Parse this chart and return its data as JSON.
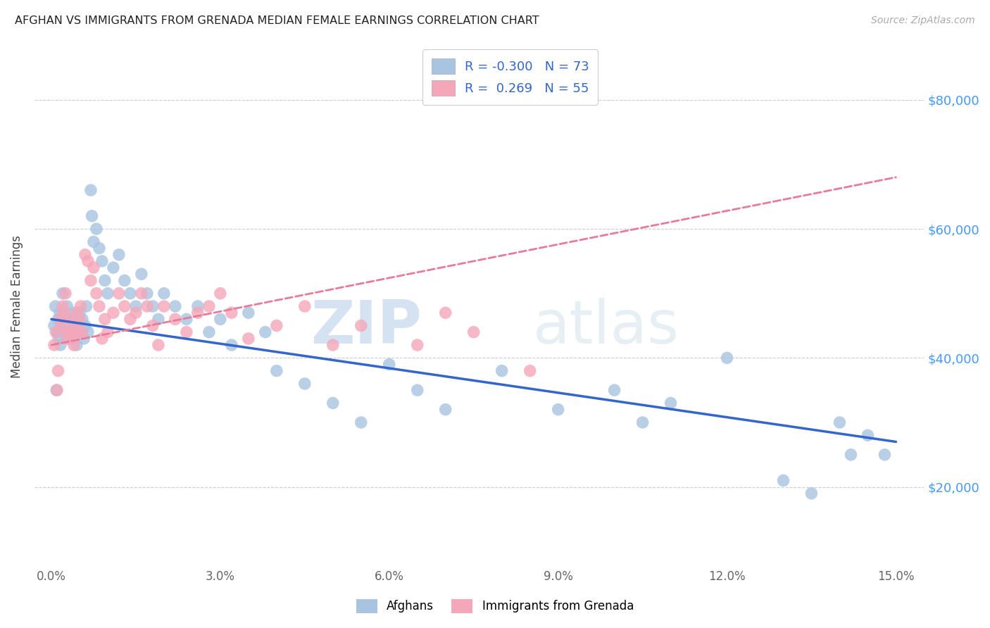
{
  "title": "AFGHAN VS IMMIGRANTS FROM GRENADA MEDIAN FEMALE EARNINGS CORRELATION CHART",
  "source": "Source: ZipAtlas.com",
  "ylabel": "Median Female Earnings",
  "xlabel_ticks": [
    "0.0%",
    "3.0%",
    "6.0%",
    "9.0%",
    "12.0%",
    "15.0%"
  ],
  "xlabel_vals": [
    0.0,
    3.0,
    6.0,
    9.0,
    12.0,
    15.0
  ],
  "ytick_labels": [
    "$20,000",
    "$40,000",
    "$60,000",
    "$80,000"
  ],
  "ytick_vals": [
    20000,
    40000,
    60000,
    80000
  ],
  "xlim": [
    -0.3,
    15.5
  ],
  "ylim": [
    8000,
    88000
  ],
  "afghan_color": "#a8c4e0",
  "grenada_color": "#f4a7b9",
  "afghan_line_color": "#3366cc",
  "grenada_line_color": "#e87a9a",
  "R_afghan": -0.3,
  "N_afghan": 73,
  "R_grenada": 0.269,
  "N_grenada": 55,
  "legend_label_1": "Afghans",
  "legend_label_2": "Immigrants from Grenada",
  "watermark_zip": "ZIP",
  "watermark_atlas": "atlas",
  "afghan_line_x0": 0.0,
  "afghan_line_y0": 46000,
  "afghan_line_x1": 15.0,
  "afghan_line_y1": 27000,
  "grenada_line_x0": 0.0,
  "grenada_line_y0": 42000,
  "grenada_line_x1": 15.0,
  "grenada_line_y1": 68000,
  "afghan_x": [
    0.05,
    0.07,
    0.09,
    0.1,
    0.12,
    0.13,
    0.15,
    0.16,
    0.18,
    0.2,
    0.22,
    0.25,
    0.28,
    0.3,
    0.32,
    0.35,
    0.38,
    0.4,
    0.42,
    0.45,
    0.48,
    0.5,
    0.52,
    0.55,
    0.58,
    0.6,
    0.62,
    0.65,
    0.7,
    0.72,
    0.75,
    0.8,
    0.85,
    0.9,
    0.95,
    1.0,
    1.1,
    1.2,
    1.3,
    1.4,
    1.5,
    1.6,
    1.7,
    1.8,
    1.9,
    2.0,
    2.2,
    2.4,
    2.6,
    2.8,
    3.0,
    3.2,
    3.5,
    3.8,
    4.0,
    4.5,
    5.0,
    5.5,
    6.0,
    6.5,
    7.0,
    8.0,
    9.0,
    10.0,
    10.5,
    11.0,
    12.0,
    13.0,
    13.5,
    14.0,
    14.2,
    14.5,
    14.8
  ],
  "afghan_y": [
    45000,
    48000,
    35000,
    44000,
    46000,
    43000,
    47000,
    42000,
    45000,
    50000,
    44000,
    46000,
    48000,
    43000,
    45000,
    44000,
    47000,
    46000,
    44000,
    42000,
    45000,
    47000,
    44000,
    46000,
    43000,
    45000,
    48000,
    44000,
    66000,
    62000,
    58000,
    60000,
    57000,
    55000,
    52000,
    50000,
    54000,
    56000,
    52000,
    50000,
    48000,
    53000,
    50000,
    48000,
    46000,
    50000,
    48000,
    46000,
    48000,
    44000,
    46000,
    42000,
    47000,
    44000,
    38000,
    36000,
    33000,
    30000,
    39000,
    35000,
    32000,
    38000,
    32000,
    35000,
    30000,
    33000,
    40000,
    21000,
    19000,
    30000,
    25000,
    28000,
    25000
  ],
  "grenada_x": [
    0.05,
    0.08,
    0.1,
    0.12,
    0.15,
    0.18,
    0.2,
    0.22,
    0.25,
    0.28,
    0.3,
    0.32,
    0.35,
    0.38,
    0.4,
    0.42,
    0.45,
    0.48,
    0.5,
    0.52,
    0.55,
    0.6,
    0.65,
    0.7,
    0.75,
    0.8,
    0.85,
    0.9,
    0.95,
    1.0,
    1.1,
    1.2,
    1.3,
    1.4,
    1.5,
    1.6,
    1.7,
    1.8,
    1.9,
    2.0,
    2.2,
    2.4,
    2.6,
    2.8,
    3.0,
    3.2,
    3.5,
    4.0,
    4.5,
    5.0,
    5.5,
    6.5,
    7.0,
    7.5,
    8.5
  ],
  "grenada_y": [
    42000,
    44000,
    35000,
    38000,
    46000,
    45000,
    48000,
    47000,
    50000,
    43000,
    44000,
    46000,
    44000,
    43000,
    42000,
    45000,
    47000,
    44000,
    46000,
    48000,
    44000,
    56000,
    55000,
    52000,
    54000,
    50000,
    48000,
    43000,
    46000,
    44000,
    47000,
    50000,
    48000,
    46000,
    47000,
    50000,
    48000,
    45000,
    42000,
    48000,
    46000,
    44000,
    47000,
    48000,
    50000,
    47000,
    43000,
    45000,
    48000,
    42000,
    45000,
    42000,
    47000,
    44000,
    38000
  ]
}
